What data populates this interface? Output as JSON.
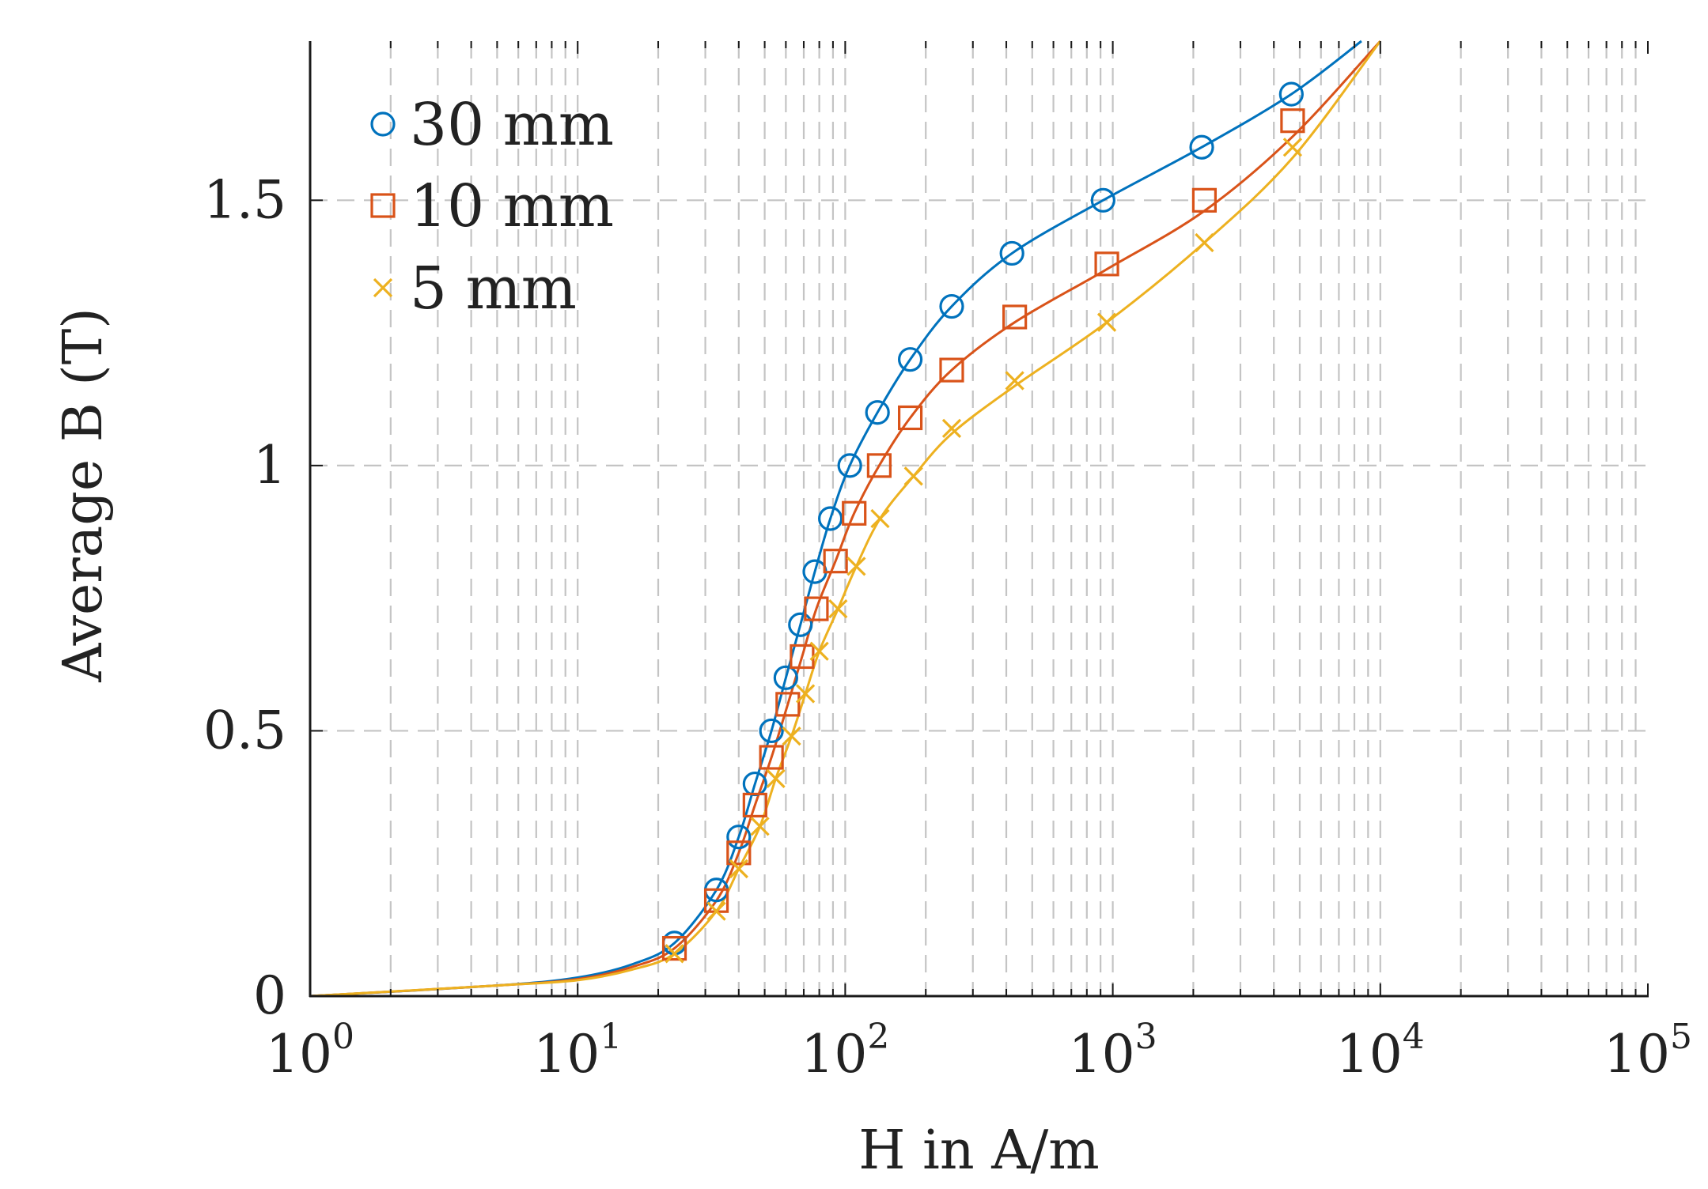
{
  "chart_data": {
    "type": "scatter",
    "title": "",
    "xlabel": "H in A/m",
    "ylabel": "Average B (T)",
    "x_scale": "log",
    "xlim": [
      1,
      100000
    ],
    "ylim": [
      0,
      1.8
    ],
    "grid": true,
    "legend_position": "top-left",
    "x_ticks": [
      {
        "base": "10",
        "exp": "0",
        "value": 1
      },
      {
        "base": "10",
        "exp": "1",
        "value": 10
      },
      {
        "base": "10",
        "exp": "2",
        "value": 100
      },
      {
        "base": "10",
        "exp": "3",
        "value": 1000
      },
      {
        "base": "10",
        "exp": "4",
        "value": 10000
      },
      {
        "base": "10",
        "exp": "5",
        "value": 100000
      }
    ],
    "y_ticks": [
      {
        "label": "0",
        "value": 0
      },
      {
        "label": "0.5",
        "value": 0.5
      },
      {
        "label": "1",
        "value": 1
      },
      {
        "label": "1.5",
        "value": 1.5
      }
    ],
    "series": [
      {
        "name": "30 mm",
        "color": "#0072BD",
        "marker": "circle",
        "x": [
          23,
          33,
          40,
          46,
          53,
          60,
          68,
          77,
          88,
          104,
          132,
          175,
          250,
          420,
          920,
          2150,
          4650
        ],
        "y": [
          0.1,
          0.2,
          0.3,
          0.4,
          0.5,
          0.6,
          0.7,
          0.8,
          0.9,
          1.0,
          1.1,
          1.2,
          1.3,
          1.4,
          1.5,
          1.6,
          1.7
        ],
        "fit_x": [
          1,
          5,
          10,
          16,
          23,
          33,
          40,
          46,
          53,
          60,
          68,
          77,
          88,
          104,
          132,
          175,
          250,
          420,
          920,
          2150,
          4650,
          8500
        ],
        "fit_y": [
          0,
          0.02,
          0.035,
          0.06,
          0.1,
          0.2,
          0.3,
          0.4,
          0.5,
          0.6,
          0.7,
          0.8,
          0.9,
          1.0,
          1.1,
          1.2,
          1.3,
          1.4,
          1.5,
          1.6,
          1.7,
          1.8
        ]
      },
      {
        "name": "10 mm",
        "color": "#D95319",
        "marker": "square",
        "x": [
          23,
          33,
          40,
          46,
          53,
          61,
          69,
          78,
          92,
          108,
          134,
          175,
          250,
          430,
          950,
          2200,
          4700
        ],
        "y": [
          0.09,
          0.18,
          0.27,
          0.36,
          0.45,
          0.55,
          0.64,
          0.73,
          0.82,
          0.91,
          1.0,
          1.09,
          1.18,
          1.28,
          1.38,
          1.5,
          1.65
        ],
        "fit_x": [
          1,
          5,
          10,
          16,
          23,
          33,
          40,
          46,
          53,
          61,
          69,
          78,
          92,
          108,
          134,
          175,
          250,
          430,
          950,
          2200,
          4700,
          10000
        ],
        "fit_y": [
          0,
          0.02,
          0.032,
          0.055,
          0.09,
          0.18,
          0.27,
          0.36,
          0.45,
          0.55,
          0.64,
          0.73,
          0.82,
          0.91,
          1.0,
          1.09,
          1.18,
          1.27,
          1.37,
          1.48,
          1.62,
          1.8
        ]
      },
      {
        "name": "5 mm",
        "color": "#EDB120",
        "marker": "x",
        "x": [
          23,
          33,
          40,
          48,
          55,
          63,
          71,
          80,
          94,
          110,
          135,
          180,
          250,
          430,
          950,
          2200,
          4700
        ],
        "y": [
          0.08,
          0.16,
          0.24,
          0.32,
          0.41,
          0.49,
          0.57,
          0.65,
          0.73,
          0.81,
          0.9,
          0.98,
          1.07,
          1.16,
          1.27,
          1.42,
          1.6
        ],
        "fit_x": [
          1,
          5,
          10,
          16,
          23,
          33,
          40,
          48,
          55,
          63,
          71,
          80,
          94,
          110,
          135,
          180,
          250,
          430,
          950,
          2200,
          4700,
          10000
        ],
        "fit_y": [
          0,
          0.02,
          0.03,
          0.05,
          0.08,
          0.16,
          0.24,
          0.32,
          0.41,
          0.49,
          0.57,
          0.65,
          0.73,
          0.81,
          0.9,
          0.98,
          1.06,
          1.15,
          1.27,
          1.42,
          1.58,
          1.8
        ]
      }
    ]
  }
}
